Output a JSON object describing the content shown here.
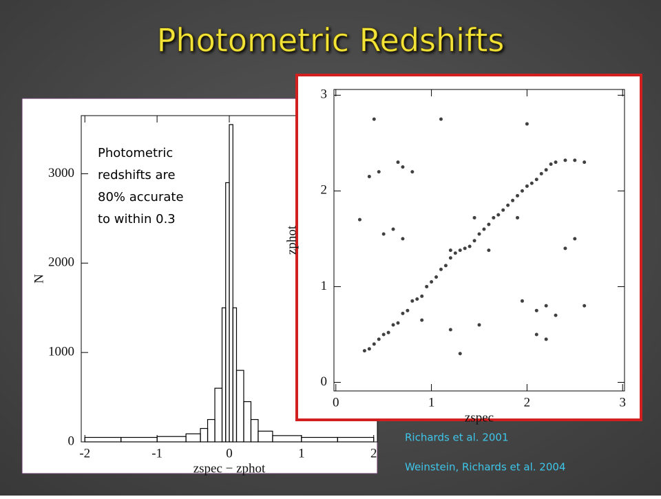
{
  "title": "Photometric Redshifts",
  "annotation": [
    "Photometric",
    "redshifts are",
    "80% accurate",
    "to within 0.3"
  ],
  "citations": [
    "Richards et al. 2001",
    "Weinstein, Richards et al. 2004"
  ],
  "chart_data": [
    {
      "type": "histogram",
      "x_label": "zspec − zphot",
      "y_label": "N",
      "bins": [
        -2,
        -1.5,
        -1,
        -0.6,
        -0.4,
        -0.3,
        -0.2,
        -0.1,
        -0.05,
        0,
        0.05,
        0.1,
        0.2,
        0.3,
        0.4,
        0.6,
        1,
        1.5,
        2
      ],
      "counts": [
        50,
        50,
        60,
        90,
        150,
        250,
        600,
        1500,
        2900,
        3550,
        1500,
        800,
        450,
        250,
        120,
        70,
        50,
        50
      ],
      "color": "#000000",
      "xlim": [
        -2.05,
        2.05
      ],
      "xticks": [
        -2,
        -1,
        0,
        1,
        2
      ],
      "ylim": [
        0,
        3650
      ],
      "yticks": [
        0,
        1000,
        2000,
        3000
      ]
    },
    {
      "type": "scatter",
      "x_label": "zspec",
      "y_label": "zphot",
      "color": "#000000",
      "x": [
        0.3,
        0.35,
        0.4,
        0.45,
        0.5,
        0.55,
        0.6,
        0.65,
        0.7,
        0.75,
        0.8,
        0.85,
        0.9,
        0.95,
        1.0,
        1.05,
        1.1,
        1.15,
        1.2,
        1.25,
        1.3,
        1.35,
        1.4,
        1.45,
        1.5,
        1.55,
        1.6,
        1.65,
        1.7,
        1.75,
        1.8,
        1.85,
        1.9,
        1.95,
        2.0,
        2.05,
        2.1,
        2.15,
        2.2,
        2.25,
        2.3,
        2.4,
        2.5,
        2.6,
        0.35,
        0.45,
        0.7,
        0.8,
        0.65,
        0.6,
        0.5,
        0.7,
        0.25,
        2.2,
        2.1,
        2.3,
        1.95,
        2.2,
        2.1,
        1.5,
        1.2,
        0.9,
        2.4,
        2.5,
        1.1,
        2.0,
        0.4,
        1.3,
        2.6,
        1.45,
        1.9,
        1.2,
        1.6
      ],
      "values": [
        0.33,
        0.35,
        0.4,
        0.45,
        0.5,
        0.52,
        0.6,
        0.62,
        0.72,
        0.75,
        0.85,
        0.87,
        0.9,
        1.0,
        1.05,
        1.1,
        1.18,
        1.22,
        1.3,
        1.35,
        1.38,
        1.4,
        1.42,
        1.48,
        1.55,
        1.6,
        1.65,
        1.72,
        1.75,
        1.8,
        1.85,
        1.9,
        1.95,
        2.0,
        2.05,
        2.08,
        2.12,
        2.18,
        2.22,
        2.28,
        2.3,
        2.32,
        2.32,
        2.3,
        2.15,
        2.2,
        2.25,
        2.2,
        2.3,
        1.6,
        1.55,
        1.5,
        1.7,
        0.8,
        0.75,
        0.7,
        0.85,
        0.45,
        0.5,
        0.6,
        0.55,
        0.65,
        1.4,
        1.5,
        2.75,
        2.7,
        2.75,
        0.3,
        0.8,
        1.72,
        1.72,
        1.38,
        1.38
      ],
      "xlim": [
        -0.02,
        3.02
      ],
      "xticks": [
        0,
        1,
        2,
        3
      ],
      "ylim": [
        -0.09,
        3.06
      ],
      "yticks": [
        0,
        1,
        2,
        3
      ]
    }
  ]
}
